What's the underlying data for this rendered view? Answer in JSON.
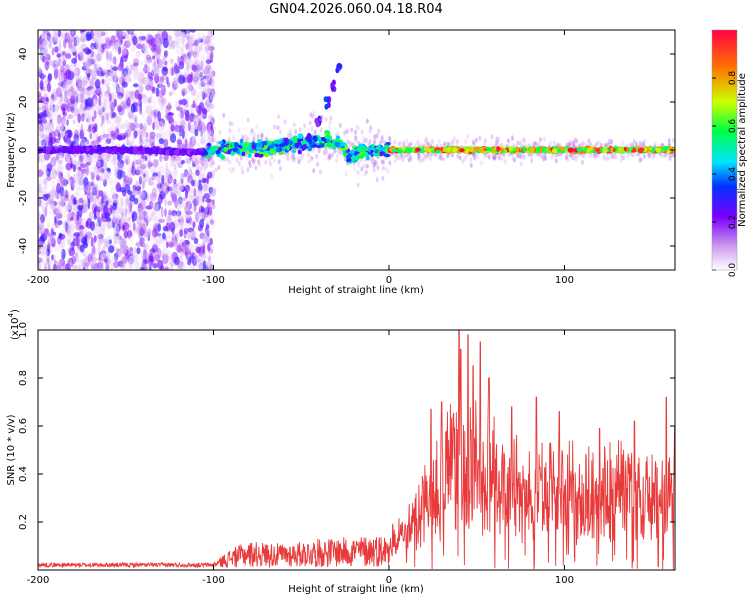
{
  "title": "GN04.2026.060.04.18.R04",
  "chart_data": [
    {
      "type": "heatmap",
      "xlabel": "Height of straight line (km)",
      "ylabel": "Frequency (Hz)",
      "xlim": [
        -200,
        163
      ],
      "ylim": [
        -50,
        50
      ],
      "xticks": [
        -200,
        -100,
        0,
        100
      ],
      "yticks": [
        -40,
        -20,
        0,
        20,
        40
      ],
      "ridge": [
        {
          "x": -200,
          "y": 0
        },
        {
          "x": -150,
          "y": 0
        },
        {
          "x": -105,
          "y": -1
        },
        {
          "x": -90,
          "y": 1
        },
        {
          "x": -75,
          "y": 0
        },
        {
          "x": -60,
          "y": 2
        },
        {
          "x": -45,
          "y": 3
        },
        {
          "x": -35,
          "y": 4
        },
        {
          "x": -28,
          "y": 2
        },
        {
          "x": -22,
          "y": -3
        },
        {
          "x": -15,
          "y": -1
        },
        {
          "x": 0,
          "y": 0
        },
        {
          "x": 163,
          "y": 0
        }
      ],
      "branch": [
        {
          "x": -45,
          "y": 5
        },
        {
          "x": -40,
          "y": 12
        },
        {
          "x": -35,
          "y": 20
        },
        {
          "x": -32,
          "y": 26
        },
        {
          "x": -28,
          "y": 34
        }
      ],
      "colorbar": {
        "label": "Normalized spectral amplitude",
        "range": [
          0,
          1
        ],
        "ticks": [
          "0.0",
          "0.2",
          "0.4",
          "0.6",
          "0.8"
        ],
        "colors": [
          "#ffffff",
          "#cc99ee",
          "#7a00ff",
          "#0033ff",
          "#00e5ff",
          "#00ff44",
          "#ccff00",
          "#ff7700",
          "#ff0044"
        ]
      }
    },
    {
      "type": "line",
      "xlabel": "Height of straight line (km)",
      "ylabel": "SNR (10 * v/v)",
      "yscale_label": "(x10",
      "yscale_exp": "4",
      "xlim": [
        -200,
        163
      ],
      "ylim": [
        0,
        1.0
      ],
      "xticks": [
        -200,
        -100,
        0,
        100
      ],
      "yticks": [
        "0.2",
        "0.4",
        "0.6",
        "0.8",
        "1.0"
      ],
      "color": "#e83a3a",
      "envelope": [
        {
          "x": -200,
          "y": 0.02
        },
        {
          "x": -100,
          "y": 0.02
        },
        {
          "x": -90,
          "y": 0.08
        },
        {
          "x": -80,
          "y": 0.11
        },
        {
          "x": -60,
          "y": 0.1
        },
        {
          "x": -40,
          "y": 0.12
        },
        {
          "x": -20,
          "y": 0.13
        },
        {
          "x": 0,
          "y": 0.14
        },
        {
          "x": 10,
          "y": 0.22
        },
        {
          "x": 20,
          "y": 0.38
        },
        {
          "x": 30,
          "y": 0.5
        },
        {
          "x": 40,
          "y": 0.62
        },
        {
          "x": 50,
          "y": 0.6
        },
        {
          "x": 60,
          "y": 0.52
        },
        {
          "x": 75,
          "y": 0.48
        },
        {
          "x": 90,
          "y": 0.45
        },
        {
          "x": 110,
          "y": 0.44
        },
        {
          "x": 130,
          "y": 0.45
        },
        {
          "x": 150,
          "y": 0.44
        },
        {
          "x": 163,
          "y": 0.47
        }
      ],
      "peaks": [
        {
          "x": 24,
          "y": 0.67
        },
        {
          "x": 30,
          "y": 0.7
        },
        {
          "x": 40,
          "y": 1.0
        },
        {
          "x": 41,
          "y": 0.92
        },
        {
          "x": 45,
          "y": 0.98
        },
        {
          "x": 48,
          "y": 0.85
        },
        {
          "x": 52,
          "y": 0.95
        },
        {
          "x": 57,
          "y": 0.8
        },
        {
          "x": 70,
          "y": 0.68
        },
        {
          "x": 84,
          "y": 0.72
        },
        {
          "x": 97,
          "y": 0.66
        },
        {
          "x": 120,
          "y": 0.59
        },
        {
          "x": 140,
          "y": 0.62
        },
        {
          "x": 158,
          "y": 0.72
        },
        {
          "x": 163,
          "y": 0.6
        }
      ]
    }
  ]
}
